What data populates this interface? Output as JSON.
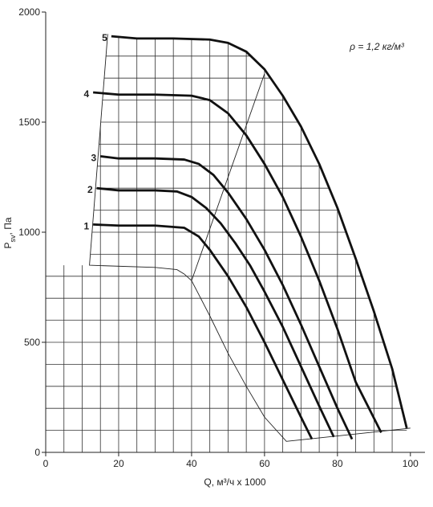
{
  "chart_data": {
    "type": "line",
    "xlabel": "Q, м³/ч x 1000",
    "ylabel": [
      "P",
      "sv",
      ", Па"
    ],
    "annotation": "ρ = 1,2 кг/м³",
    "xlim": [
      0,
      104
    ],
    "ylim": [
      0,
      2000
    ],
    "xticks": [
      0,
      20,
      40,
      60,
      80,
      100
    ],
    "yticks": [
      0,
      500,
      1000,
      1500,
      2000
    ],
    "xgrid": [
      5,
      10,
      15,
      20,
      25,
      30,
      35,
      40,
      45,
      50,
      55,
      60,
      65,
      70,
      75,
      80,
      85,
      90,
      95,
      100
    ],
    "ygrid": [
      100,
      200,
      300,
      400,
      500,
      600,
      700,
      800,
      900,
      1000,
      1100,
      1200,
      1300,
      1400,
      1500,
      1600,
      1700,
      1800,
      1900
    ],
    "series": [
      {
        "name": "1",
        "color": "#111111",
        "x": [
          13,
          20,
          30,
          38,
          42,
          45,
          50,
          55,
          60,
          65,
          70,
          73
        ],
        "values": [
          1035,
          1030,
          1030,
          1020,
          980,
          920,
          800,
          660,
          500,
          330,
          160,
          60
        ]
      },
      {
        "name": "2",
        "color": "#111111",
        "x": [
          14,
          20,
          30,
          36,
          40,
          44,
          48,
          52,
          56,
          60,
          65,
          70,
          75,
          79
        ],
        "values": [
          1200,
          1190,
          1190,
          1185,
          1160,
          1110,
          1040,
          950,
          850,
          730,
          570,
          390,
          210,
          70
        ]
      },
      {
        "name": "3",
        "color": "#111111",
        "x": [
          15,
          20,
          30,
          38,
          42,
          46,
          50,
          55,
          60,
          65,
          70,
          75,
          80,
          84
        ],
        "values": [
          1345,
          1335,
          1335,
          1330,
          1310,
          1260,
          1180,
          1060,
          920,
          760,
          580,
          390,
          200,
          60
        ]
      },
      {
        "name": "4",
        "color": "#111111",
        "x": [
          13,
          20,
          30,
          40,
          45,
          50,
          55,
          60,
          65,
          70,
          75,
          80,
          85,
          92
        ],
        "values": [
          1635,
          1625,
          1625,
          1620,
          1600,
          1540,
          1440,
          1310,
          1160,
          980,
          780,
          560,
          320,
          90
        ]
      },
      {
        "name": "5",
        "color": "#111111",
        "x": [
          18,
          25,
          35,
          45,
          50,
          55,
          60,
          65,
          70,
          75,
          80,
          85,
          90,
          95,
          99
        ],
        "values": [
          1890,
          1880,
          1880,
          1875,
          1860,
          1820,
          1740,
          1620,
          1480,
          1310,
          1110,
          880,
          640,
          380,
          110
        ]
      }
    ],
    "outlines": [
      {
        "x": [
          17,
          12,
          30,
          36,
          38,
          40,
          45,
          50,
          55,
          60,
          66,
          100
        ],
        "y": [
          1900,
          850,
          840,
          830,
          810,
          780,
          620,
          450,
          300,
          160,
          50,
          110
        ]
      },
      {
        "x": [
          40,
          60
        ],
        "y": [
          780,
          1720
        ]
      }
    ]
  }
}
